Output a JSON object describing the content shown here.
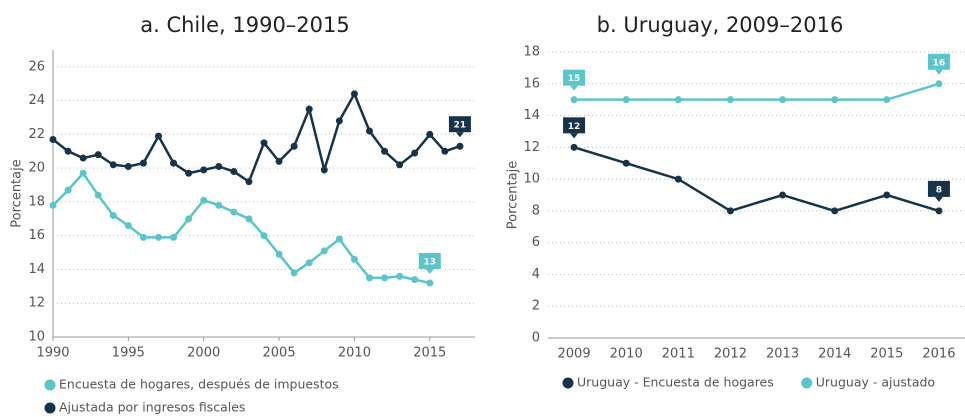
{
  "chart_data": [
    {
      "type": "line",
      "title": "a. Chile, 1990–2015",
      "y_label": "Porcentaje",
      "x": [
        1990,
        1991,
        1992,
        1993,
        1994,
        1995,
        1996,
        1997,
        1998,
        1999,
        2000,
        2001,
        2002,
        2003,
        2004,
        2005,
        2006,
        2007,
        2008,
        2009,
        2010,
        2011,
        2012,
        2013,
        2014,
        2015,
        2016,
        2017
      ],
      "xlim": [
        1990,
        2018
      ],
      "xticks": [
        1990,
        1995,
        2000,
        2005,
        2010,
        2015
      ],
      "ylim": [
        10,
        27
      ],
      "yticks": [
        10,
        12,
        14,
        16,
        18,
        20,
        22,
        24,
        26
      ],
      "grid": true,
      "legend": "bottom-left",
      "series": [
        {
          "name": "Encuesta de hogares, después de impuestos",
          "color": "#5bc5cc",
          "values": [
            17.8,
            18.7,
            19.7,
            18.4,
            17.2,
            16.6,
            15.9,
            15.9,
            15.9,
            17.0,
            18.1,
            17.8,
            17.4,
            17.0,
            16.0,
            14.9,
            13.8,
            14.4,
            15.1,
            15.8,
            14.6,
            13.5,
            13.5,
            13.6,
            13.4,
            13.2,
            null,
            null
          ],
          "value_labels": [
            null,
            null,
            null,
            null,
            null,
            null,
            null,
            null,
            null,
            null,
            null,
            null,
            null,
            null,
            null,
            null,
            null,
            null,
            null,
            null,
            null,
            null,
            null,
            null,
            null,
            "13",
            null,
            null
          ]
        },
        {
          "name": "Ajustada por ingresos fiscales",
          "color": "#17334a",
          "values": [
            21.7,
            21.0,
            20.6,
            20.8,
            20.2,
            20.1,
            20.3,
            21.9,
            20.3,
            19.7,
            19.9,
            20.1,
            19.8,
            19.2,
            21.5,
            20.4,
            21.3,
            23.5,
            19.9,
            22.8,
            24.4,
            22.2,
            21.0,
            20.2,
            20.9,
            22.0,
            21.0,
            21.3
          ],
          "value_labels": [
            null,
            null,
            null,
            null,
            null,
            null,
            null,
            null,
            null,
            null,
            null,
            null,
            null,
            null,
            null,
            null,
            null,
            null,
            null,
            null,
            null,
            null,
            null,
            null,
            null,
            null,
            null,
            "21"
          ]
        }
      ]
    },
    {
      "type": "line",
      "title": "b. Uruguay, 2009–2016",
      "y_label": "Porcentaje",
      "categories": [
        "2009",
        "2010",
        "2011",
        "2012",
        "2013",
        "2014",
        "2015",
        "2016"
      ],
      "ylim": [
        0,
        18
      ],
      "yticks": [
        0,
        2,
        4,
        6,
        8,
        10,
        12,
        14,
        16,
        18
      ],
      "grid": true,
      "legend": "bottom",
      "series": [
        {
          "name": "Uruguay - Encuesta de hogares",
          "color": "#17334a",
          "values": [
            12,
            11,
            10,
            8,
            9,
            8,
            9,
            8
          ],
          "value_labels": [
            "12",
            null,
            null,
            null,
            null,
            null,
            null,
            "8"
          ]
        },
        {
          "name": "Uruguay - ajustado",
          "color": "#5bc5cc",
          "values": [
            15,
            15,
            15,
            15,
            15,
            15,
            15,
            16
          ],
          "value_labels": [
            "15",
            null,
            null,
            null,
            null,
            null,
            null,
            "16"
          ]
        }
      ]
    }
  ]
}
